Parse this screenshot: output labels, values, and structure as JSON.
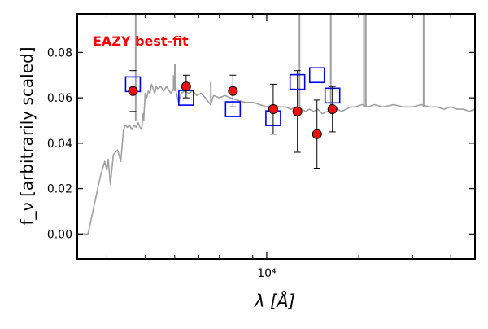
{
  "chart_data": {
    "type": "scatter",
    "title": "EAZY best-fit",
    "title_color": "#ff0000",
    "xlabel": "λ [Å]",
    "ylabel": "f_ν [arbitrarily scaled]",
    "xscale": "log",
    "xlim": [
      2400,
      48000
    ],
    "ylim": [
      -0.011,
      0.097
    ],
    "x_ticks": [
      {
        "value": 10000,
        "label": "10⁴"
      }
    ],
    "y_ticks": [
      {
        "value": 0.0,
        "label": "0.00"
      },
      {
        "value": 0.02,
        "label": "0.02"
      },
      {
        "value": 0.04,
        "label": "0.04"
      },
      {
        "value": 0.06,
        "label": "0.06"
      },
      {
        "value": 0.08,
        "label": "0.08"
      }
    ],
    "x_minor_ticks": [
      3000,
      4000,
      5000,
      6000,
      7000,
      8000,
      9000,
      20000,
      30000,
      40000
    ],
    "grid": false,
    "colors": {
      "template": "#a0a0a0",
      "model": "#0000ee",
      "observed_fill": "#ee1111",
      "errorbar": "#000000"
    },
    "series": [
      {
        "kind": "line",
        "points": [
          [
            2400,
            0.0
          ],
          [
            2600,
            0.0
          ],
          [
            2700,
            0.01
          ],
          [
            2850,
            0.025
          ],
          [
            2950,
            0.032
          ],
          [
            3000,
            0.028
          ],
          [
            3030,
            0.033
          ],
          [
            3080,
            0.022
          ],
          [
            3150,
            0.035
          ],
          [
            3250,
            0.037
          ],
          [
            3330,
            0.032
          ],
          [
            3400,
            0.046
          ],
          [
            3450,
            0.048
          ],
          [
            3500,
            0.047
          ],
          [
            3560,
            0.048
          ],
          [
            3620,
            0.046
          ],
          [
            3680,
            0.048
          ],
          [
            3740,
            0.047
          ],
          [
            3800,
            0.049
          ],
          [
            3850,
            0.047
          ],
          [
            3900,
            0.046
          ],
          [
            3940,
            0.053
          ],
          [
            3960,
            0.05
          ],
          [
            4000,
            0.062
          ],
          [
            4050,
            0.06
          ],
          [
            4100,
            0.063
          ],
          [
            4150,
            0.062
          ],
          [
            4200,
            0.066
          ],
          [
            4250,
            0.064
          ],
          [
            4300,
            0.062
          ],
          [
            4350,
            0.065
          ],
          [
            4400,
            0.064
          ],
          [
            4500,
            0.065
          ],
          [
            4600,
            0.063
          ],
          [
            4700,
            0.065
          ],
          [
            4800,
            0.063
          ],
          [
            4860,
            0.062
          ],
          [
            4950,
            0.064
          ],
          [
            5050,
            0.063
          ],
          [
            5150,
            0.058
          ],
          [
            5250,
            0.062
          ],
          [
            5400,
            0.063
          ],
          [
            5550,
            0.062
          ],
          [
            5750,
            0.063
          ],
          [
            5900,
            0.061
          ],
          [
            6100,
            0.062
          ],
          [
            6300,
            0.06
          ],
          [
            6550,
            0.057
          ],
          [
            6700,
            0.061
          ],
          [
            7000,
            0.06
          ],
          [
            7300,
            0.061
          ],
          [
            7600,
            0.06
          ],
          [
            8000,
            0.059
          ],
          [
            8500,
            0.058
          ],
          [
            9000,
            0.058
          ],
          [
            9500,
            0.057
          ],
          [
            10000,
            0.056
          ],
          [
            10500,
            0.057
          ],
          [
            11000,
            0.056
          ],
          [
            11500,
            0.056
          ],
          [
            12000,
            0.055
          ],
          [
            12500,
            0.056
          ],
          [
            13000,
            0.055
          ],
          [
            13400,
            0.054
          ],
          [
            13800,
            0.055
          ],
          [
            14200,
            0.054
          ],
          [
            14700,
            0.055
          ],
          [
            15200,
            0.053
          ],
          [
            15800,
            0.054
          ],
          [
            16400,
            0.055
          ],
          [
            17000,
            0.055
          ],
          [
            17600,
            0.054
          ],
          [
            18200,
            0.055
          ],
          [
            18800,
            0.056
          ],
          [
            19500,
            0.056
          ],
          [
            20500,
            0.057
          ],
          [
            21500,
            0.056
          ],
          [
            22500,
            0.057
          ],
          [
            24000,
            0.056
          ],
          [
            26000,
            0.057
          ],
          [
            28000,
            0.056
          ],
          [
            30000,
            0.056
          ],
          [
            32000,
            0.057
          ],
          [
            34000,
            0.056
          ],
          [
            36000,
            0.056
          ],
          [
            38000,
            0.055
          ],
          [
            40000,
            0.056
          ],
          [
            42000,
            0.055
          ],
          [
            44000,
            0.055
          ],
          [
            46000,
            0.054
          ],
          [
            48000,
            0.055
          ]
        ]
      },
      {
        "kind": "emission_lines",
        "lines": [
          {
            "x": 3727,
            "base": 0.05,
            "peak": 0.097
          },
          {
            "x": 4960,
            "base": 0.063,
            "peak": 0.07
          },
          {
            "x": 5007,
            "base": 0.063,
            "peak": 0.075
          },
          {
            "x": 6563,
            "base": 0.058,
            "peak": 0.067
          },
          {
            "x": 12800,
            "base": 0.056,
            "peak": 0.097
          },
          {
            "x": 16200,
            "base": 0.055,
            "peak": 0.097
          },
          {
            "x": 20800,
            "base": 0.056,
            "peak": 0.097
          },
          {
            "x": 21100,
            "base": 0.056,
            "peak": 0.097
          },
          {
            "x": 32600,
            "base": 0.056,
            "peak": 0.097
          }
        ]
      },
      {
        "kind": "model_squares",
        "points": [
          {
            "x": 3650,
            "y": 0.066
          },
          {
            "x": 5450,
            "y": 0.06
          },
          {
            "x": 7750,
            "y": 0.055
          },
          {
            "x": 10500,
            "y": 0.051
          },
          {
            "x": 12600,
            "y": 0.067
          },
          {
            "x": 14600,
            "y": 0.07
          },
          {
            "x": 16400,
            "y": 0.061
          }
        ]
      },
      {
        "kind": "observed",
        "points": [
          {
            "x": 3650,
            "y": 0.063,
            "err": 0.009
          },
          {
            "x": 5450,
            "y": 0.065,
            "err": 0.005
          },
          {
            "x": 7750,
            "y": 0.063,
            "err": 0.007
          },
          {
            "x": 10500,
            "y": 0.055,
            "err": 0.011
          },
          {
            "x": 12600,
            "y": 0.054,
            "err": 0.018
          },
          {
            "x": 14600,
            "y": 0.044,
            "err": 0.015
          },
          {
            "x": 16400,
            "y": 0.055,
            "err": 0.01
          }
        ]
      }
    ]
  }
}
